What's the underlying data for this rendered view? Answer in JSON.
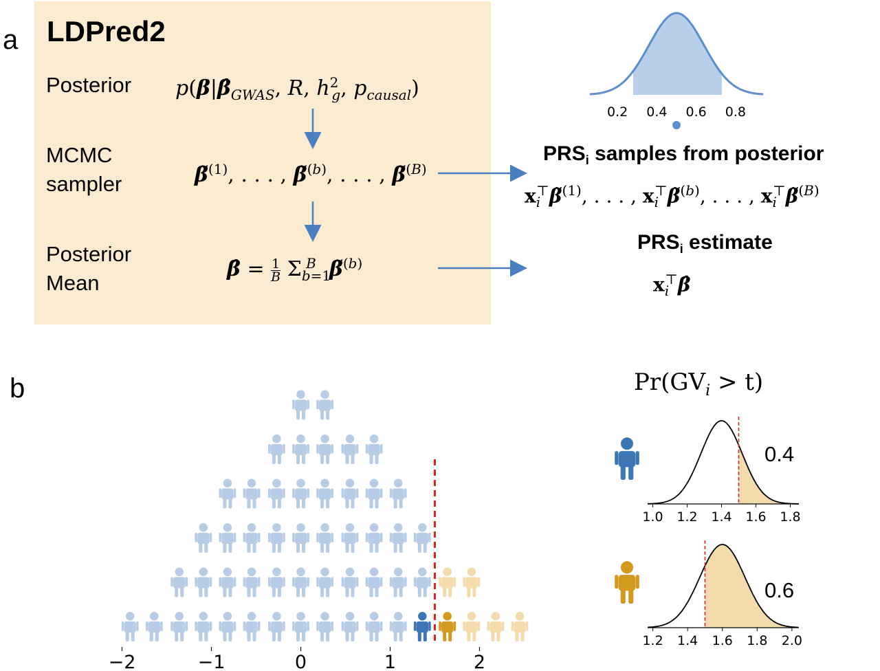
{
  "panel_a": {
    "letter": "a",
    "title": "LDPred2",
    "rows": [
      {
        "label_lines": [
          "Posterior"
        ],
        "formula": "p(β|β̂GWAS, R, h²g, pcausal)"
      },
      {
        "label_lines": [
          "MCMC",
          "sampler"
        ],
        "formula": "β̃(1), ..., β̃(b), ..., β̃(B)"
      },
      {
        "label_lines": [
          "Posterior",
          "Mean"
        ],
        "formula": "β̂ = (1/B) Σb=1..B β̃(b)"
      }
    ],
    "samples_heading": "PRS",
    "samples_heading_sub": "i",
    "samples_heading_rest": " samples from posterior",
    "samples_formula": "xᵢᵀβ̃(1), ..., xᵢᵀβ̃(b), ..., xᵢᵀβ̃(B)",
    "estimate_heading": "PRS",
    "estimate_heading_sub": "i",
    "estimate_heading_rest": " estimate",
    "estimate_formula": "xᵢᵀβ̂",
    "posterior_curve": {
      "mean": 0.5,
      "sd": 0.14,
      "shade_range": [
        0.28,
        0.73
      ],
      "xticks": [
        "0.2",
        "0.4",
        "0.6",
        "0.8"
      ],
      "point": 0.5,
      "color": "#5b8fcb",
      "fill": "#b8cfe9"
    }
  },
  "panel_b": {
    "letter": "b",
    "prob_title": "Pr(GV",
    "prob_title_sub": "i",
    "prob_title_rest": " > t)",
    "histogram": {
      "bin_centers": [
        -1.91,
        -1.64,
        -1.36,
        -1.09,
        -0.82,
        -0.55,
        -0.27,
        0.0,
        0.27,
        0.55,
        0.82,
        1.09,
        1.36,
        1.64,
        1.91,
        2.18,
        2.45
      ],
      "counts": [
        1,
        1,
        2,
        3,
        4,
        4,
        5,
        6,
        6,
        5,
        5,
        4,
        3,
        2,
        2,
        1,
        1
      ],
      "threshold": 1.5,
      "highlight_blue_x": 1.33,
      "highlight_orange_x": 1.62,
      "xticks": [
        "−2",
        "−1",
        "0",
        "1",
        "2"
      ],
      "xtick_values": [
        -2,
        -1,
        0,
        1,
        2
      ],
      "colors": {
        "light_blue": "#b7cde5",
        "light_orange": "#f4dbab",
        "blue": "#3e76b5",
        "orange": "#d39a1f",
        "threshold": "#e02424"
      }
    },
    "insets": [
      {
        "person_color": "#3e76b5",
        "value": "0.4",
        "mean": 1.4,
        "sd": 0.12,
        "threshold": 1.5,
        "xmin": 0.97,
        "xmax": 1.85,
        "xticks": [
          "1.0",
          "1.2",
          "1.4",
          "1.6",
          "1.8"
        ],
        "xtick_values": [
          1.0,
          1.2,
          1.4,
          1.6,
          1.8
        ],
        "fill": "#f4dbab"
      },
      {
        "person_color": "#d39a1f",
        "value": "0.6",
        "mean": 1.6,
        "sd": 0.13,
        "threshold": 1.5,
        "xmin": 1.17,
        "xmax": 2.04,
        "xticks": [
          "1.2",
          "1.4",
          "1.6",
          "1.8",
          "2.0"
        ],
        "xtick_values": [
          1.2,
          1.4,
          1.6,
          1.8,
          2.0
        ],
        "fill": "#f4dbab"
      }
    ]
  }
}
